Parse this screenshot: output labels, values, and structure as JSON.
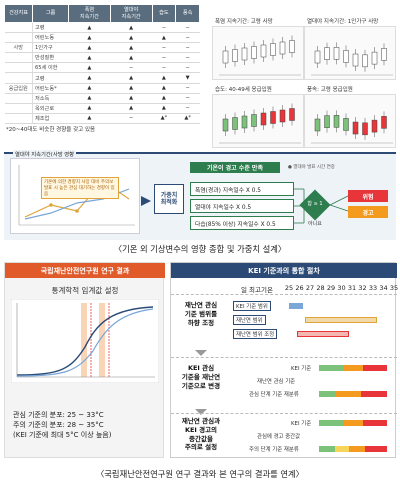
{
  "top": {
    "table": {
      "headers": [
        "건강지표",
        "그룹",
        "폭염\n지속기간",
        "열대야\n지속기간",
        "습도",
        "풍속"
      ],
      "rows": [
        {
          "cat": "",
          "grp": "고령",
          "v": [
            "▲",
            "▲",
            "−",
            "−"
          ]
        },
        {
          "cat": "",
          "grp": "어린노동",
          "v": [
            "▲",
            "▲",
            "▲",
            "−"
          ]
        },
        {
          "cat": "사망",
          "grp": "1인가구",
          "v": [
            "▲",
            "▲",
            "−",
            "−"
          ]
        },
        {
          "cat": "",
          "grp": "만성질환",
          "v": [
            "▲",
            "▲",
            "−",
            "−"
          ]
        },
        {
          "cat": "",
          "grp": "65세 이한",
          "v": [
            "▲",
            "−",
            "−",
            "−"
          ]
        },
        {
          "cat": "",
          "grp": "고령",
          "v": [
            "▲",
            "▲",
            "▲",
            "▼"
          ]
        },
        {
          "cat": "응급입원",
          "grp": "어린노동*",
          "v": [
            "▲",
            "▲",
            "▲",
            "−"
          ]
        },
        {
          "cat": "",
          "grp": "저소득",
          "v": [
            "▲",
            "▲",
            "▲",
            "−"
          ]
        },
        {
          "cat": "",
          "grp": "옥외근로",
          "v": [
            "▲",
            "▲",
            "▲",
            "−"
          ]
        },
        {
          "cat": "",
          "grp": "체조업",
          "v": [
            "▲",
            "−",
            "▲*",
            "▲*"
          ]
        }
      ],
      "note": "*20~40대도 비슷한 경향을 갖고 있음"
    },
    "panels": [
      {
        "title": "폭염 지속기간: 고령 사망"
      },
      {
        "title": "열대야 지속기간: 1인가구 사망"
      },
      {
        "title": "습도: 40-49세 응급입원"
      },
      {
        "title": "풍속: 고령 응급입원"
      }
    ],
    "mini_chart": {
      "title": "열대야 지속기간(사망 영향",
      "callout": "기온에 의한 경향치 사망 대비 주의보 발표 시 높은 관심 대기하는 경향이 있음"
    },
    "weight_box": "가중치\n최적화",
    "grad_header": "기온이 경고 수준 만족",
    "grad_legend": "● 열대야 발표 시간 연중",
    "conditions": [
      "폭염(경과) 지속일수 X 0.5",
      "열대야 지속일수 X 0.5",
      "다습(85% 이상) 지속일수 X 0.5"
    ],
    "diamond_label": "합 ≥ 1",
    "no_label": "아니요",
    "results": {
      "red": "위험",
      "orange": "경고"
    },
    "caption": "〈기온 외 기상변수의 영향 종합 및 가중치 설계〉"
  },
  "bottom": {
    "left": {
      "header": "국립재난안전연구원 연구 결과",
      "sub": "통계학적 임계값 설정",
      "notes": [
        "관심 기준의 분포: 25 ~ 33°C",
        "주의 기준의 분포: 28 ~ 35°C",
        "(KEI 기준에 최대 5°C 이상 높음)"
      ]
    },
    "right": {
      "header": "KEI 기준과의 통합 절차",
      "axis_title": "일 최고기온",
      "ticks": [
        "25",
        "26",
        "27",
        "28",
        "29",
        "30",
        "31",
        "32",
        "33",
        "34",
        "35"
      ],
      "blocks": [
        {
          "title": "재난연 관심\n기준 범위를\n하향 조정",
          "labels": [
            "KEI 기준 범위",
            "재난연 범위",
            "재난연 범위 조정"
          ]
        },
        {
          "title": "KEI 관심\n기준을 재난연\n기준으로 변경",
          "labels": [
            "KEI 기준",
            "재난연 관심 기준",
            "관심 단계 기준 재분류"
          ]
        },
        {
          "title": "재난연 관심과\nKEI 경고의\n중간값을\n주의로 설정",
          "labels": [
            "KEI 기준",
            "관심에 경고 중간값",
            "주의 단계 기준 재분류"
          ]
        }
      ]
    },
    "caption": "〈국립재난안전연구원 연구 결과와 본 연구의 결과를 연계〉"
  },
  "colors": {
    "navy": "#2b4b76",
    "green": "#2e7d4f",
    "red": "#e8353a",
    "orange": "#f39a1f",
    "accent": "#e05a2a"
  }
}
